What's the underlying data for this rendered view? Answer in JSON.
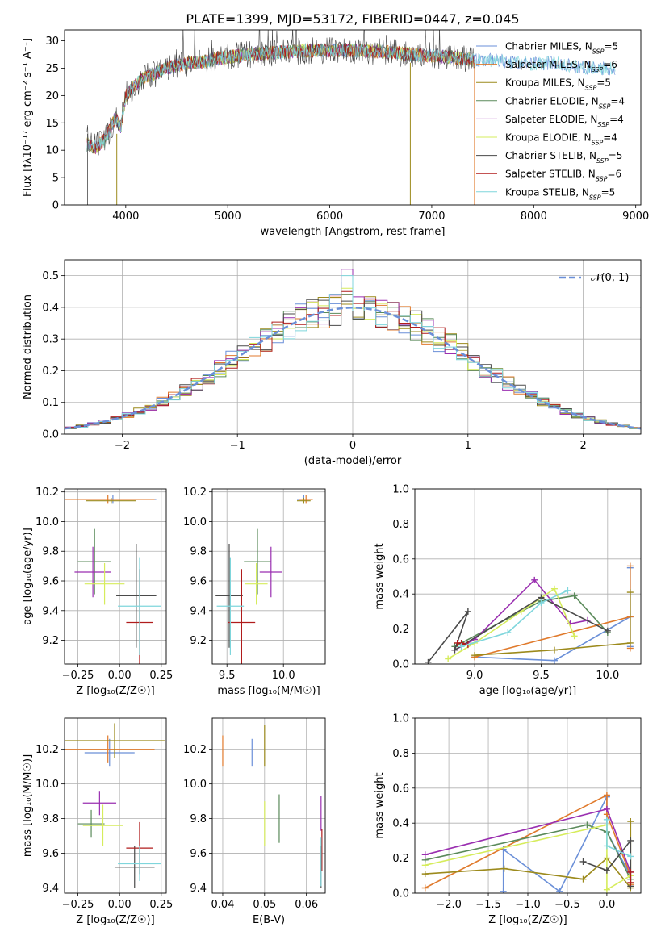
{
  "title": "PLATE=1399, MJD=53172, FIBERID=0447, z=0.045",
  "models": [
    {
      "name": "Chabrier MILES",
      "n": "5",
      "color": "#6a8fd8"
    },
    {
      "name": "Salpeter MILES",
      "n": "6",
      "color": "#e07a2c"
    },
    {
      "name": "Kroupa MILES",
      "n": "5",
      "color": "#9c8a1c"
    },
    {
      "name": "Chabrier ELODIE",
      "n": "4",
      "color": "#5a8a5a"
    },
    {
      "name": "Salpeter ELODIE",
      "n": "4",
      "color": "#9a2fb0"
    },
    {
      "name": "Kroupa ELODIE",
      "n": "4",
      "color": "#d6ec5c"
    },
    {
      "name": "Chabrier STELIB",
      "n": "5",
      "color": "#4a4a4a"
    },
    {
      "name": "Salpeter STELIB",
      "n": "6",
      "color": "#b01c1c"
    },
    {
      "name": "Kroupa STELIB",
      "n": "5",
      "color": "#7fd6dc"
    }
  ],
  "normal_label": "𝒩(0, 1)",
  "chart_data": [
    {
      "type": "line",
      "id": "spectrum",
      "xlabel": "wavelength [Angstrom, rest frame]",
      "ylabel": "Flux [fλ10⁻¹⁷ erg cm⁻² s⁻¹ A⁻¹]",
      "xlim": [
        3400,
        9050
      ],
      "ylim": [
        0,
        32
      ],
      "xticks": [
        4000,
        5000,
        6000,
        7000,
        8000,
        9000
      ],
      "yticks": [
        0,
        5,
        10,
        15,
        20,
        25,
        30
      ],
      "x": [
        3620,
        3700,
        3800,
        3900,
        3950,
        4000,
        4100,
        4200,
        4300,
        4400,
        4500,
        4600,
        4700,
        4800,
        4900,
        5000,
        5200,
        5400,
        5600,
        5800,
        6000,
        6200,
        6400,
        6600,
        6800,
        7000,
        7200,
        7400,
        7600,
        7800,
        8000,
        8200,
        8400,
        8600,
        8800
      ],
      "y": [
        11,
        10.5,
        12,
        16,
        14,
        20,
        22,
        23.5,
        24,
        25,
        25.5,
        25.8,
        26,
        26.3,
        26.8,
        27,
        27.5,
        27.8,
        28,
        28.2,
        28.3,
        28.3,
        28.1,
        27.9,
        27.5,
        27.3,
        27,
        26.5,
        26.4,
        26.2,
        25.8,
        26,
        25.3,
        25,
        25
      ],
      "legend": "top-right"
    },
    {
      "type": "bar",
      "id": "residuals",
      "xlabel": "(data-model)/error",
      "ylabel": "Normed distribution",
      "xlim": [
        -2.5,
        2.5
      ],
      "ylim": [
        0,
        0.55
      ],
      "xticks": [
        -2,
        -1,
        0,
        1,
        2
      ],
      "yticks": [
        0.0,
        0.1,
        0.2,
        0.3,
        0.4,
        0.5
      ],
      "bin_width": 0.1,
      "grid": true,
      "legend": "top-right"
    },
    {
      "type": "scatter",
      "id": "age-vs-Z",
      "xlabel": "Z [log₁₀(Z/Z☉)]",
      "ylabel": "age  [log₁₀(age/yr)]",
      "xlim": [
        -0.33,
        0.28
      ],
      "ylim": [
        9.04,
        10.22
      ],
      "xticks": [
        -0.25,
        0.0,
        0.25
      ],
      "yticks": [
        9.2,
        9.4,
        9.6,
        9.8,
        10.0,
        10.2
      ],
      "points": [
        {
          "x": -0.04,
          "y": 10.15,
          "xerr": 0.26,
          "yerr": 0.03
        },
        {
          "x": -0.07,
          "y": 10.15,
          "xerr": 0.28,
          "yerr": 0.03
        },
        {
          "x": -0.05,
          "y": 10.14,
          "xerr": 0.15,
          "yerr": 0.02
        },
        {
          "x": -0.15,
          "y": 9.73,
          "xerr": 0.1,
          "yerr": 0.22
        },
        {
          "x": -0.16,
          "y": 9.66,
          "xerr": 0.11,
          "yerr": 0.17
        },
        {
          "x": -0.09,
          "y": 9.58,
          "xerr": 0.12,
          "yerr": 0.14
        },
        {
          "x": 0.1,
          "y": 9.5,
          "xerr": 0.12,
          "yerr": 0.35
        },
        {
          "x": 0.12,
          "y": 9.32,
          "xerr": 0.08,
          "yerr": 0.36
        },
        {
          "x": 0.12,
          "y": 9.43,
          "xerr": 0.13,
          "yerr": 0.33
        }
      ],
      "grid": true
    },
    {
      "type": "scatter",
      "id": "age-vs-mass",
      "xlabel": "mass [log₁₀(M/M☉)]",
      "ylabel": "",
      "xlim": [
        9.37,
        10.37
      ],
      "ylim": [
        9.04,
        10.22
      ],
      "xticks": [
        9.5,
        10.0
      ],
      "yticks": [
        9.2,
        9.4,
        9.6,
        9.8,
        10.0,
        10.2
      ],
      "points": [
        {
          "x": 10.18,
          "y": 10.15,
          "xerr": 0.06,
          "yerr": 0.03
        },
        {
          "x": 10.2,
          "y": 10.15,
          "xerr": 0.06,
          "yerr": 0.03
        },
        {
          "x": 10.18,
          "y": 10.14,
          "xerr": 0.06,
          "yerr": 0.02
        },
        {
          "x": 9.77,
          "y": 9.73,
          "xerr": 0.12,
          "yerr": 0.22
        },
        {
          "x": 9.89,
          "y": 9.66,
          "xerr": 0.1,
          "yerr": 0.17
        },
        {
          "x": 9.76,
          "y": 9.58,
          "xerr": 0.1,
          "yerr": 0.14
        },
        {
          "x": 9.52,
          "y": 9.5,
          "xerr": 0.12,
          "yerr": 0.35
        },
        {
          "x": 9.63,
          "y": 9.32,
          "xerr": 0.12,
          "yerr": 0.36
        },
        {
          "x": 9.53,
          "y": 9.43,
          "xerr": 0.12,
          "yerr": 0.33
        }
      ],
      "grid": true
    },
    {
      "type": "line",
      "id": "massweight-vs-age",
      "xlabel": "age  [log₁₀(age/yr)]",
      "ylabel": "mass weight",
      "xlim": [
        8.55,
        10.25
      ],
      "ylim": [
        0,
        1
      ],
      "xticks": [
        9.0,
        9.5,
        10.0
      ],
      "yticks": [
        0.0,
        0.2,
        0.4,
        0.6,
        0.8,
        1.0
      ],
      "series": [
        {
          "x": [
            9.0,
            9.6,
            10.17,
            10.17,
            10.17
          ],
          "y": [
            0.04,
            0.02,
            0.27,
            0.55,
            0.1
          ]
        },
        {
          "x": [
            9.0,
            10.17,
            10.17,
            10.17
          ],
          "y": [
            0.04,
            0.27,
            0.56,
            0.09
          ]
        },
        {
          "x": [
            9.0,
            9.6,
            10.17,
            10.17
          ],
          "y": [
            0.05,
            0.08,
            0.12,
            0.41
          ]
        },
        {
          "x": [
            8.85,
            9.5,
            9.75,
            10.0
          ],
          "y": [
            0.1,
            0.36,
            0.39,
            0.18
          ]
        },
        {
          "x": [
            8.85,
            9.0,
            9.45,
            9.72,
            9.85
          ],
          "y": [
            0.08,
            0.14,
            0.48,
            0.23,
            0.25
          ]
        },
        {
          "x": [
            8.8,
            9.0,
            9.35,
            9.6,
            9.75
          ],
          "y": [
            0.03,
            0.12,
            0.3,
            0.43,
            0.16
          ]
        },
        {
          "x": [
            8.65,
            8.95,
            8.85,
            9.5,
            10.0
          ],
          "y": [
            0.01,
            0.3,
            0.08,
            0.38,
            0.19
          ]
        },
        {
          "x": [
            8.87,
            8.95,
            8.9
          ],
          "y": [
            0.12,
            0.11,
            0.12
          ]
        },
        {
          "x": [
            8.9,
            9.25,
            9.5,
            9.7
          ],
          "y": [
            0.1,
            0.18,
            0.35,
            0.42
          ]
        }
      ],
      "grid": true
    },
    {
      "type": "scatter",
      "id": "mass-vs-Z",
      "xlabel": "Z [log₁₀(Z/Z☉)]",
      "ylabel": "mass [log₁₀(M/M☉)]",
      "xlim": [
        -0.33,
        0.28
      ],
      "ylim": [
        9.37,
        10.38
      ],
      "xticks": [
        -0.25,
        0.0,
        0.25
      ],
      "yticks": [
        9.4,
        9.6,
        9.8,
        10.0,
        10.2
      ],
      "points": [
        {
          "x": -0.06,
          "y": 10.18,
          "xerr": 0.15,
          "yerr": 0.08
        },
        {
          "x": -0.07,
          "y": 10.2,
          "xerr": 0.28,
          "yerr": 0.08
        },
        {
          "x": -0.03,
          "y": 10.25,
          "xerr": 0.3,
          "yerr": 0.1
        },
        {
          "x": -0.17,
          "y": 9.77,
          "xerr": 0.08,
          "yerr": 0.08
        },
        {
          "x": -0.12,
          "y": 9.89,
          "xerr": 0.1,
          "yerr": 0.07
        },
        {
          "x": -0.1,
          "y": 9.76,
          "xerr": 0.12,
          "yerr": 0.12
        },
        {
          "x": 0.09,
          "y": 9.52,
          "xerr": 0.12,
          "yerr": 0.12
        },
        {
          "x": 0.12,
          "y": 9.63,
          "xerr": 0.08,
          "yerr": 0.15
        },
        {
          "x": 0.12,
          "y": 9.54,
          "xerr": 0.13,
          "yerr": 0.1
        }
      ],
      "grid": true
    },
    {
      "type": "scatter",
      "id": "mass-vs-ebv",
      "xlabel": "E(B-V)",
      "ylabel": "",
      "xlim": [
        0.0375,
        0.0645
      ],
      "ylim": [
        9.37,
        10.38
      ],
      "xticks": [
        0.04,
        0.05,
        0.06
      ],
      "yticks": [
        9.4,
        9.6,
        9.8,
        10.0,
        10.2
      ],
      "points": [
        {
          "x": 0.047,
          "y": 10.18,
          "xerr": 0,
          "yerr": 0.08
        },
        {
          "x": 0.04,
          "y": 10.19,
          "xerr": 0,
          "yerr": 0.09
        },
        {
          "x": 0.05,
          "y": 10.22,
          "xerr": 0,
          "yerr": 0.12
        },
        {
          "x": 0.0535,
          "y": 9.8,
          "xerr": 0,
          "yerr": 0.14
        },
        {
          "x": 0.0635,
          "y": 9.83,
          "xerr": 0,
          "yerr": 0.1
        },
        {
          "x": 0.05,
          "y": 9.77,
          "xerr": 0,
          "yerr": 0.13
        },
        {
          "x": 0.0635,
          "y": 9.52,
          "xerr": 0,
          "yerr": 0.12
        },
        {
          "x": 0.0637,
          "y": 9.62,
          "xerr": 0,
          "yerr": 0.12
        },
        {
          "x": 0.0635,
          "y": 9.55,
          "xerr": 0,
          "yerr": 0.14
        }
      ],
      "grid": true
    },
    {
      "type": "line",
      "id": "massweight-vs-Z",
      "xlabel": "Z [log₁₀(Z/Z☉)]",
      "ylabel": "mass weight",
      "xlim": [
        -2.43,
        0.43
      ],
      "ylim": [
        0,
        1
      ],
      "xticks": [
        -2.0,
        -1.5,
        -1.0,
        -0.5,
        0.0
      ],
      "yticks": [
        0.0,
        0.2,
        0.4,
        0.6,
        0.8,
        1.0
      ],
      "series": [
        {
          "x": [
            -1.31,
            -1.31,
            -0.6,
            0.0,
            0.0,
            0.3
          ],
          "y": [
            0.01,
            0.25,
            0.01,
            0.55,
            0.35,
            0.1
          ]
        },
        {
          "x": [
            -2.3,
            0.0,
            0.0,
            0.3,
            0.3
          ],
          "y": [
            0.03,
            0.56,
            0.45,
            0.1,
            0.05
          ]
        },
        {
          "x": [
            -2.3,
            -1.3,
            -0.3,
            0.0,
            0.3,
            0.3
          ],
          "y": [
            0.11,
            0.14,
            0.08,
            0.2,
            0.03,
            0.41
          ]
        },
        {
          "x": [
            -2.3,
            -0.25,
            0.0,
            0.3
          ],
          "y": [
            0.19,
            0.39,
            0.35,
            0.08
          ]
        },
        {
          "x": [
            -2.3,
            0.0,
            0.3
          ],
          "y": [
            0.22,
            0.48,
            0.12
          ]
        },
        {
          "x": [
            -2.3,
            0.0,
            0.0,
            0.3
          ],
          "y": [
            0.16,
            0.39,
            0.02,
            0.1
          ]
        },
        {
          "x": [
            -0.3,
            0.0,
            0.3,
            0.3
          ],
          "y": [
            0.18,
            0.13,
            0.3,
            0.04
          ]
        },
        {
          "x": [
            0.3,
            0.3
          ],
          "y": [
            0.12,
            0.06
          ]
        },
        {
          "x": [
            0.0,
            0.0,
            0.3
          ],
          "y": [
            0.42,
            0.27,
            0.21
          ]
        }
      ],
      "grid": true
    }
  ]
}
